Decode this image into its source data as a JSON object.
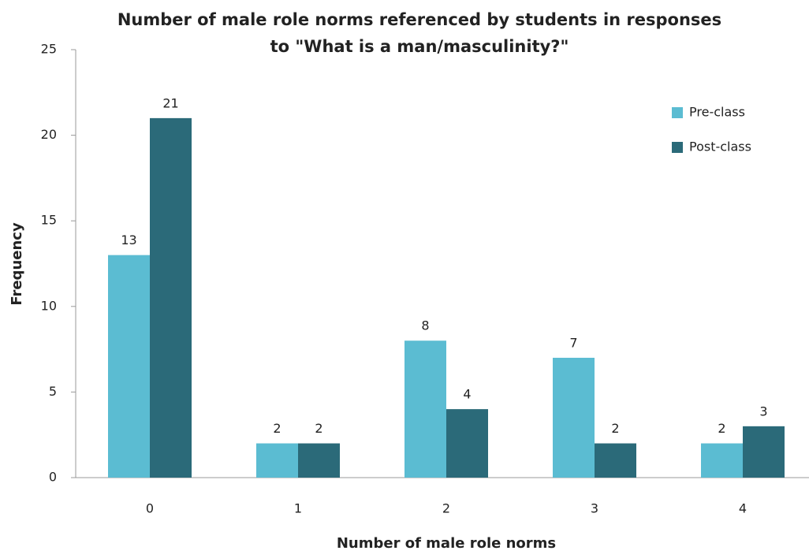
{
  "chart_data": {
    "type": "bar",
    "title": [
      "Number of male role norms referenced by students in responses",
      "to \"What is a man/masculinity?\""
    ],
    "x_label": "Number of male role norms",
    "y_label": "Frequency",
    "categories": [
      "0",
      "1",
      "2",
      "3",
      "4"
    ],
    "series": [
      {
        "name": "Pre-class",
        "color": "#5bbcd2",
        "values": [
          13,
          2,
          8,
          7,
          2
        ]
      },
      {
        "name": "Post-class",
        "color": "#2b6a79",
        "values": [
          21,
          2,
          4,
          2,
          3
        ]
      }
    ],
    "ylim": [
      0,
      25
    ],
    "yticks": [
      0,
      5,
      10,
      15,
      20,
      25
    ],
    "grid": false,
    "legend": "upper right"
  }
}
